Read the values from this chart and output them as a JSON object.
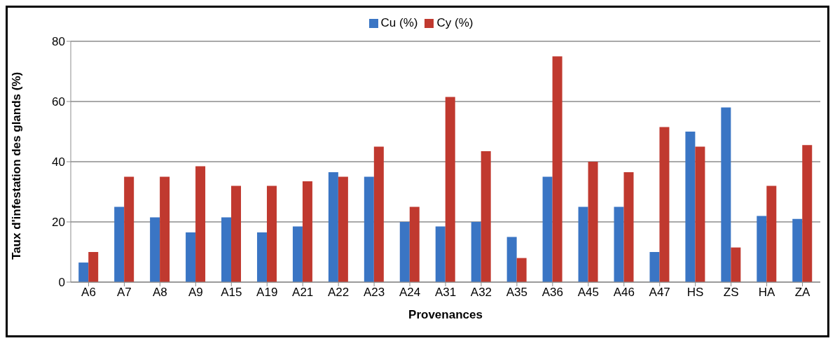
{
  "chart_data": {
    "type": "bar",
    "xlabel": "Provenances",
    "ylabel": "Taux d'infestation des glands (%)",
    "categories": [
      "A6",
      "A7",
      "A8",
      "A9",
      "A15",
      "A19",
      "A21",
      "A22",
      "A23",
      "A24",
      "A31",
      "A32",
      "A35",
      "A36",
      "A45",
      "A46",
      "A47",
      "HS",
      "ZS",
      "HA",
      "ZA"
    ],
    "series": [
      {
        "name": "Cu (%)",
        "color": "#3a75c4",
        "values": [
          6.5,
          25,
          21.5,
          16.5,
          21.5,
          16.5,
          18.5,
          36.5,
          35,
          20,
          18.5,
          20,
          15,
          35,
          25,
          25,
          10,
          50,
          58,
          22,
          21
        ]
      },
      {
        "name": "Cy (%)",
        "color": "#c0392f",
        "values": [
          10,
          35,
          35,
          38.5,
          32,
          32,
          33.5,
          35,
          45,
          25,
          61.5,
          43.5,
          8,
          75,
          40,
          36.5,
          51.5,
          45,
          11.5,
          32,
          45.5
        ]
      }
    ],
    "ylim": [
      0,
      80
    ],
    "yticks": [
      0,
      20,
      40,
      60,
      80
    ],
    "grid": "y",
    "legend": "top"
  }
}
